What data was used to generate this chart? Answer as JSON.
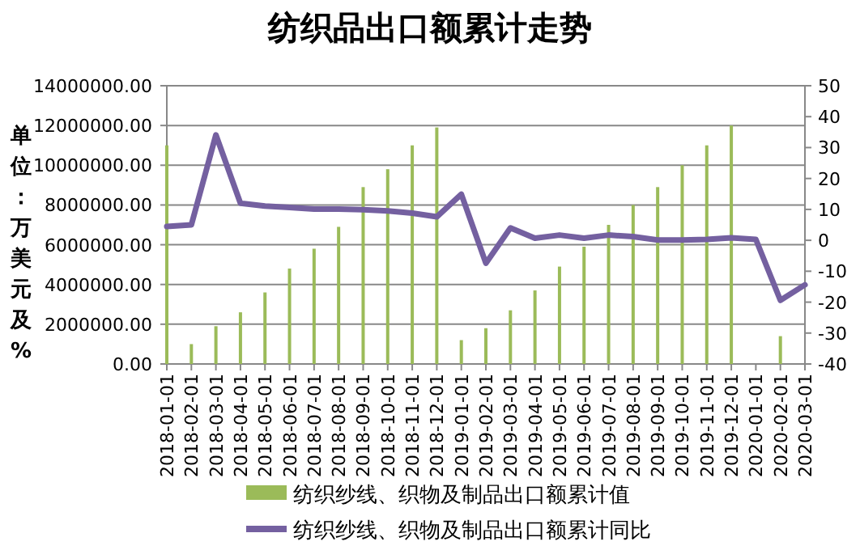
{
  "chart_data": {
    "type": "bar",
    "title": "纺织品出口额累计走势",
    "ylabel": "单位：万美元及%",
    "categories": [
      "2018-01-01",
      "2018-02-01",
      "2018-03-01",
      "2018-04-01",
      "2018-05-01",
      "2018-06-01",
      "2018-07-01",
      "2018-08-01",
      "2018-09-01",
      "2018-10-01",
      "2018-11-01",
      "2018-12-01",
      "2019-01-01",
      "2019-02-01",
      "2019-03-01",
      "2019-04-01",
      "2019-05-01",
      "2019-06-01",
      "2019-07-01",
      "2019-08-01",
      "2019-09-01",
      "2019-10-01",
      "2019-11-01",
      "2019-12-01",
      "2020-01-01",
      "2020-02-01",
      "2020-03-01"
    ],
    "series": [
      {
        "name": "纺织纱线、织物及制品出口额累计值",
        "color": "#9bbb59",
        "values": [
          11000000,
          1000000,
          1900000,
          2600000,
          3600000,
          4800000,
          5800000,
          6900000,
          8900000,
          9800000,
          11000000,
          11900000,
          1200000,
          1800000,
          2700000,
          3700000,
          4900000,
          5900000,
          7000000,
          8000000,
          8900000,
          10000000,
          11000000,
          12000000,
          null,
          1400000,
          null
        ]
      },
      {
        "name": "纺织纱线、织物及制品出口额累计同比",
        "type": "line",
        "axis": "y2",
        "color": "#7460a0",
        "values": [
          4.5,
          5.0,
          34.1,
          12.0,
          11.1,
          10.6,
          10.1,
          10.1,
          9.9,
          9.5,
          8.8,
          7.6,
          14.9,
          -7.4,
          4.0,
          0.7,
          1.7,
          0.7,
          1.7,
          1.2,
          0.1,
          0.1,
          0.3,
          0.8,
          0.3,
          -19.4,
          -14.4
        ]
      }
    ],
    "ylim": [
      0,
      14000000
    ],
    "yticks": [
      {
        "value": 0,
        "label": "0.00"
      },
      {
        "value": 2000000,
        "label": "2000000.00"
      },
      {
        "value": 4000000,
        "label": "4000000.00"
      },
      {
        "value": 6000000,
        "label": "6000000.00"
      },
      {
        "value": 8000000,
        "label": "8000000.00"
      },
      {
        "value": 10000000,
        "label": "10000000.00"
      },
      {
        "value": 12000000,
        "label": "12000000.00"
      },
      {
        "value": 14000000,
        "label": "14000000.00"
      }
    ],
    "y2lim": [
      -40,
      50
    ],
    "y2ticks": [
      -40,
      -30,
      -20,
      -10,
      0,
      10,
      20,
      30,
      40,
      50
    ],
    "grid": "y",
    "legend": "bottom",
    "marker": "none",
    "line_style": "solid"
  }
}
